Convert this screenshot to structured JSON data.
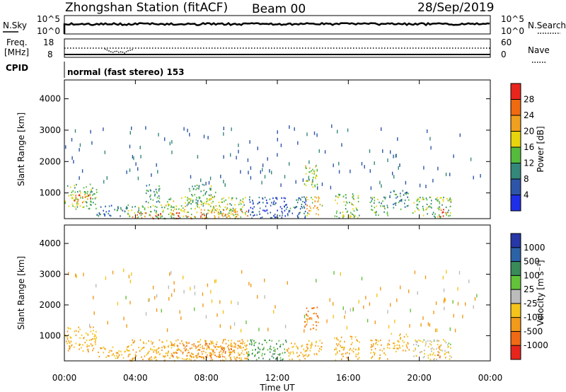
{
  "header": {
    "station": "Zhongshan Station (fitACF)",
    "beam": "Beam 00",
    "date": "28/Sep/2019",
    "cpid_label": "CPID",
    "cpid_value": "normal (fast stereo) 153"
  },
  "top_panels": {
    "nsky": {
      "label": "N.Sky",
      "ticks": [
        "10^5",
        "10^0"
      ]
    },
    "nsearch": {
      "label": "N.Search",
      "ticks": [
        "10^5",
        "10^0"
      ]
    },
    "freq": {
      "label_line1": "Freq.",
      "label_line2": "[MHz]",
      "ticks": [
        "18",
        "8"
      ]
    },
    "nave": {
      "label": "Nave",
      "ticks": [
        "60",
        "0"
      ]
    }
  },
  "colors": {
    "power": [
      "#1f2fe8",
      "#2e55a8",
      "#33887a",
      "#55bb3d",
      "#e8d40c",
      "#f0a01f",
      "#f06a10",
      "#e8251d"
    ],
    "velocity": [
      "#2737a6",
      "#2c62a6",
      "#3a8a5a",
      "#64c23a",
      "#bcbcbc",
      "#f5c41a",
      "#f29a1a",
      "#f06a14",
      "#e8251d"
    ]
  },
  "chart_data": [
    {
      "type": "heatmap",
      "title": "",
      "xlabel": "",
      "ylabel": "Slant Range [km]",
      "x_ticks": [
        "00:00",
        "04:00",
        "08:00",
        "12:00",
        "16:00",
        "20:00",
        "00:00"
      ],
      "xlim_hours": [
        0,
        24
      ],
      "y_ticks": [
        1000,
        2000,
        3000,
        4000
      ],
      "ylim": [
        180,
        4600
      ],
      "colorbar": {
        "label": "Power [dB]",
        "ticks": [
          4,
          8,
          12,
          16,
          20,
          24,
          28
        ],
        "range": [
          0,
          32
        ]
      },
      "echo_regions": [
        {
          "t0": 0.0,
          "t1": 1.8,
          "r0": 500,
          "r1": 1300,
          "value": 14
        },
        {
          "t0": 0.5,
          "t1": 1.5,
          "r0": 700,
          "r1": 1000,
          "value": 26
        },
        {
          "t0": 1.8,
          "t1": 3.5,
          "r0": 280,
          "r1": 650,
          "value": 8
        },
        {
          "t0": 3.5,
          "t1": 5.6,
          "r0": 210,
          "r1": 650,
          "value": 14
        },
        {
          "t0": 3.8,
          "t1": 5.4,
          "r0": 200,
          "r1": 380,
          "value": 26
        },
        {
          "t0": 4.5,
          "t1": 5.4,
          "r0": 700,
          "r1": 1300,
          "value": 10
        },
        {
          "t0": 5.6,
          "t1": 10.3,
          "r0": 200,
          "r1": 900,
          "value": 16
        },
        {
          "t0": 6.0,
          "t1": 8.0,
          "r0": 200,
          "r1": 400,
          "value": 28
        },
        {
          "t0": 8.0,
          "t1": 10.3,
          "r0": 250,
          "r1": 500,
          "value": 22
        },
        {
          "t0": 7.0,
          "t1": 8.5,
          "r0": 700,
          "r1": 1300,
          "value": 12
        },
        {
          "t0": 10.3,
          "t1": 12.5,
          "r0": 220,
          "r1": 900,
          "value": 6
        },
        {
          "t0": 12.5,
          "t1": 13.7,
          "r0": 230,
          "r1": 900,
          "value": 8
        },
        {
          "t0": 13.5,
          "t1": 14.3,
          "r0": 1200,
          "r1": 2000,
          "value": 16
        },
        {
          "t0": 13.6,
          "t1": 14.5,
          "r0": 300,
          "r1": 900,
          "value": 20
        },
        {
          "t0": 15.2,
          "t1": 16.6,
          "r0": 220,
          "r1": 1000,
          "value": 14
        },
        {
          "t0": 17.2,
          "t1": 18.2,
          "r0": 230,
          "r1": 900,
          "value": 12
        },
        {
          "t0": 18.2,
          "t1": 19.4,
          "r0": 500,
          "r1": 1100,
          "value": 10
        },
        {
          "t0": 19.6,
          "t1": 21.8,
          "r0": 230,
          "r1": 900,
          "value": 14
        },
        {
          "t0": 21.0,
          "t1": 21.5,
          "r0": 230,
          "r1": 500,
          "value": 28
        }
      ]
    },
    {
      "type": "heatmap",
      "title": "",
      "xlabel": "Time UT",
      "ylabel": "Slant Range [km]",
      "x_ticks": [
        "00:00",
        "04:00",
        "08:00",
        "12:00",
        "16:00",
        "20:00",
        "00:00"
      ],
      "xlim_hours": [
        0,
        24
      ],
      "y_ticks": [
        1000,
        2000,
        3000,
        4000
      ],
      "ylim": [
        180,
        4600
      ],
      "colorbar": {
        "label": "Velocity [m s⁻¹]",
        "ticks": [
          "1000",
          "500",
          "100",
          "25",
          "-25",
          "-100",
          "-500",
          "-1000"
        ]
      },
      "echo_regions": [
        {
          "t0": 0.0,
          "t1": 1.8,
          "r0": 500,
          "r1": 1300,
          "value": -100
        },
        {
          "t0": 1.8,
          "t1": 3.5,
          "r0": 280,
          "r1": 650,
          "value": -100
        },
        {
          "t0": 3.5,
          "t1": 10.3,
          "r0": 200,
          "r1": 900,
          "value": -100
        },
        {
          "t0": 6.0,
          "t1": 9.5,
          "r0": 300,
          "r1": 800,
          "value": -500
        },
        {
          "t0": 9.5,
          "t1": 10.3,
          "r0": 250,
          "r1": 900,
          "value": -200
        },
        {
          "t0": 10.3,
          "t1": 12.5,
          "r0": 220,
          "r1": 900,
          "value": 100
        },
        {
          "t0": 12.5,
          "t1": 13.7,
          "r0": 230,
          "r1": 800,
          "value": -100
        },
        {
          "t0": 13.5,
          "t1": 14.3,
          "r0": 1200,
          "r1": 2000,
          "value": -500
        },
        {
          "t0": 13.6,
          "t1": 14.5,
          "r0": 300,
          "r1": 900,
          "value": -100
        },
        {
          "t0": 15.2,
          "t1": 16.6,
          "r0": 220,
          "r1": 1000,
          "value": -100
        },
        {
          "t0": 17.2,
          "t1": 18.2,
          "r0": 230,
          "r1": 900,
          "value": -100
        },
        {
          "t0": 18.2,
          "t1": 19.4,
          "r0": 500,
          "r1": 1100,
          "value": -100
        },
        {
          "t0": 19.6,
          "t1": 21.8,
          "r0": 230,
          "r1": 900,
          "value": -30
        },
        {
          "t0": 21.0,
          "t1": 21.5,
          "r0": 300,
          "r1": 700,
          "value": -500
        }
      ]
    }
  ]
}
